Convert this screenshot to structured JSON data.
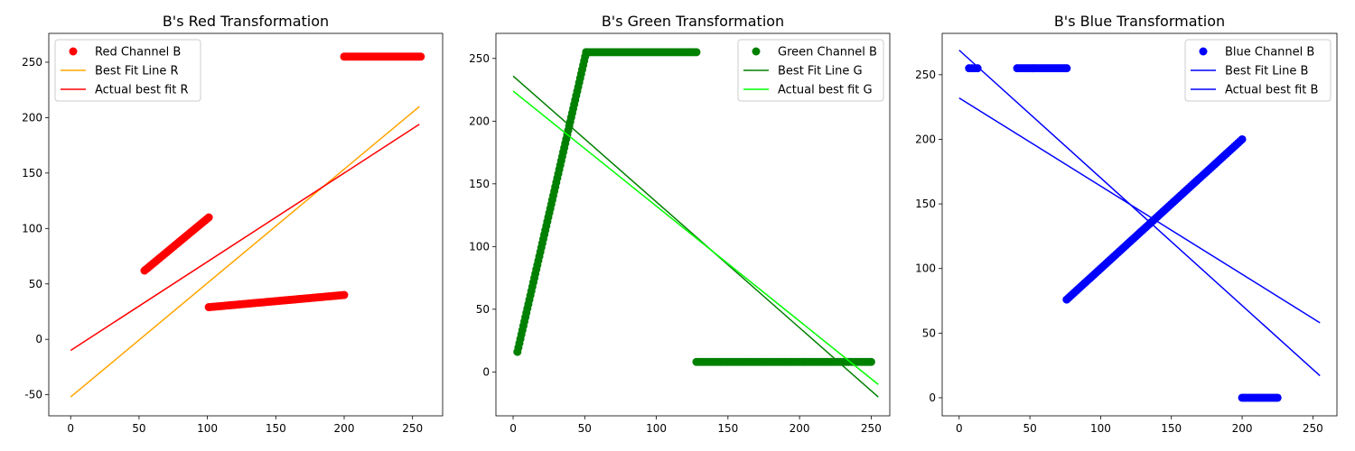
{
  "chart_data": [
    {
      "type": "scatter",
      "title": "B's Red Transformation",
      "xlabel": "",
      "ylabel": "",
      "xlim": [
        -16,
        272
      ],
      "ylim": [
        -69,
        276
      ],
      "xticks": [
        0,
        50,
        100,
        150,
        200,
        250
      ],
      "yticks": [
        -50,
        0,
        50,
        100,
        150,
        200,
        250
      ],
      "legend_position": "top-left",
      "grid": false,
      "scatter": {
        "name": "Red Channel B",
        "color": "#ff0000",
        "segments": [
          {
            "x": [
              54,
              101
            ],
            "y": [
              62,
              110
            ],
            "n": 36
          },
          {
            "x": [
              101,
              200
            ],
            "y": [
              29,
              40
            ],
            "n": 70
          },
          {
            "x": [
              200,
              256
            ],
            "y": [
              255,
              255
            ],
            "n": 45
          }
        ]
      },
      "lines": [
        {
          "name": "Best Fit Line R",
          "color": "#ffa500",
          "x": [
            0,
            255
          ],
          "y": [
            -52,
            210
          ]
        },
        {
          "name": "Actual best fit R",
          "color": "#ff0000",
          "x": [
            0,
            255
          ],
          "y": [
            -10,
            194
          ]
        }
      ]
    },
    {
      "type": "scatter",
      "title": "B's Green Transformation",
      "xlabel": "",
      "ylabel": "",
      "xlim": [
        -12,
        263
      ],
      "ylim": [
        -35,
        270
      ],
      "xticks": [
        0,
        50,
        100,
        150,
        200,
        250
      ],
      "yticks": [
        0,
        50,
        100,
        150,
        200,
        250
      ],
      "legend_position": "top-right",
      "grid": false,
      "scatter": {
        "name": "Green Channel B",
        "color": "#008000",
        "segments": [
          {
            "x": [
              3,
              51
            ],
            "y": [
              16,
              255
            ],
            "n": 70
          },
          {
            "x": [
              51,
              128
            ],
            "y": [
              255,
              255
            ],
            "n": 55
          },
          {
            "x": [
              128,
              250
            ],
            "y": [
              8,
              8
            ],
            "n": 80
          }
        ]
      },
      "lines": [
        {
          "name": "Best Fit Line G",
          "color": "#008000",
          "x": [
            0,
            255
          ],
          "y": [
            236,
            -20
          ]
        },
        {
          "name": "Actual best fit G",
          "color": "#00ff00",
          "x": [
            0,
            255
          ],
          "y": [
            224,
            -10
          ]
        }
      ]
    },
    {
      "type": "scatter",
      "title": "B's Blue Transformation",
      "xlabel": "",
      "ylabel": "",
      "xlim": [
        -12,
        267
      ],
      "ylim": [
        -14,
        282
      ],
      "xticks": [
        0,
        50,
        100,
        150,
        200,
        250
      ],
      "yticks": [
        0,
        50,
        100,
        150,
        200,
        250
      ],
      "legend_position": "top-right",
      "grid": false,
      "scatter": {
        "name": "Blue Channel B",
        "color": "#0000ff",
        "segments": [
          {
            "x": [
              7,
              13
            ],
            "y": [
              255,
              255
            ],
            "n": 4
          },
          {
            "x": [
              41,
              76
            ],
            "y": [
              255,
              255
            ],
            "n": 25
          },
          {
            "x": [
              76,
              200
            ],
            "y": [
              76,
              200
            ],
            "n": 90
          },
          {
            "x": [
              200,
              225
            ],
            "y": [
              0,
              0
            ],
            "n": 18
          }
        ]
      },
      "lines": [
        {
          "name": "Best Fit Line B",
          "color": "#0000ff",
          "x": [
            0,
            255
          ],
          "y": [
            269,
            17
          ]
        },
        {
          "name": "Actual best fit B",
          "color": "#0000ff",
          "x": [
            0,
            255
          ],
          "y": [
            232,
            58
          ]
        }
      ]
    }
  ]
}
